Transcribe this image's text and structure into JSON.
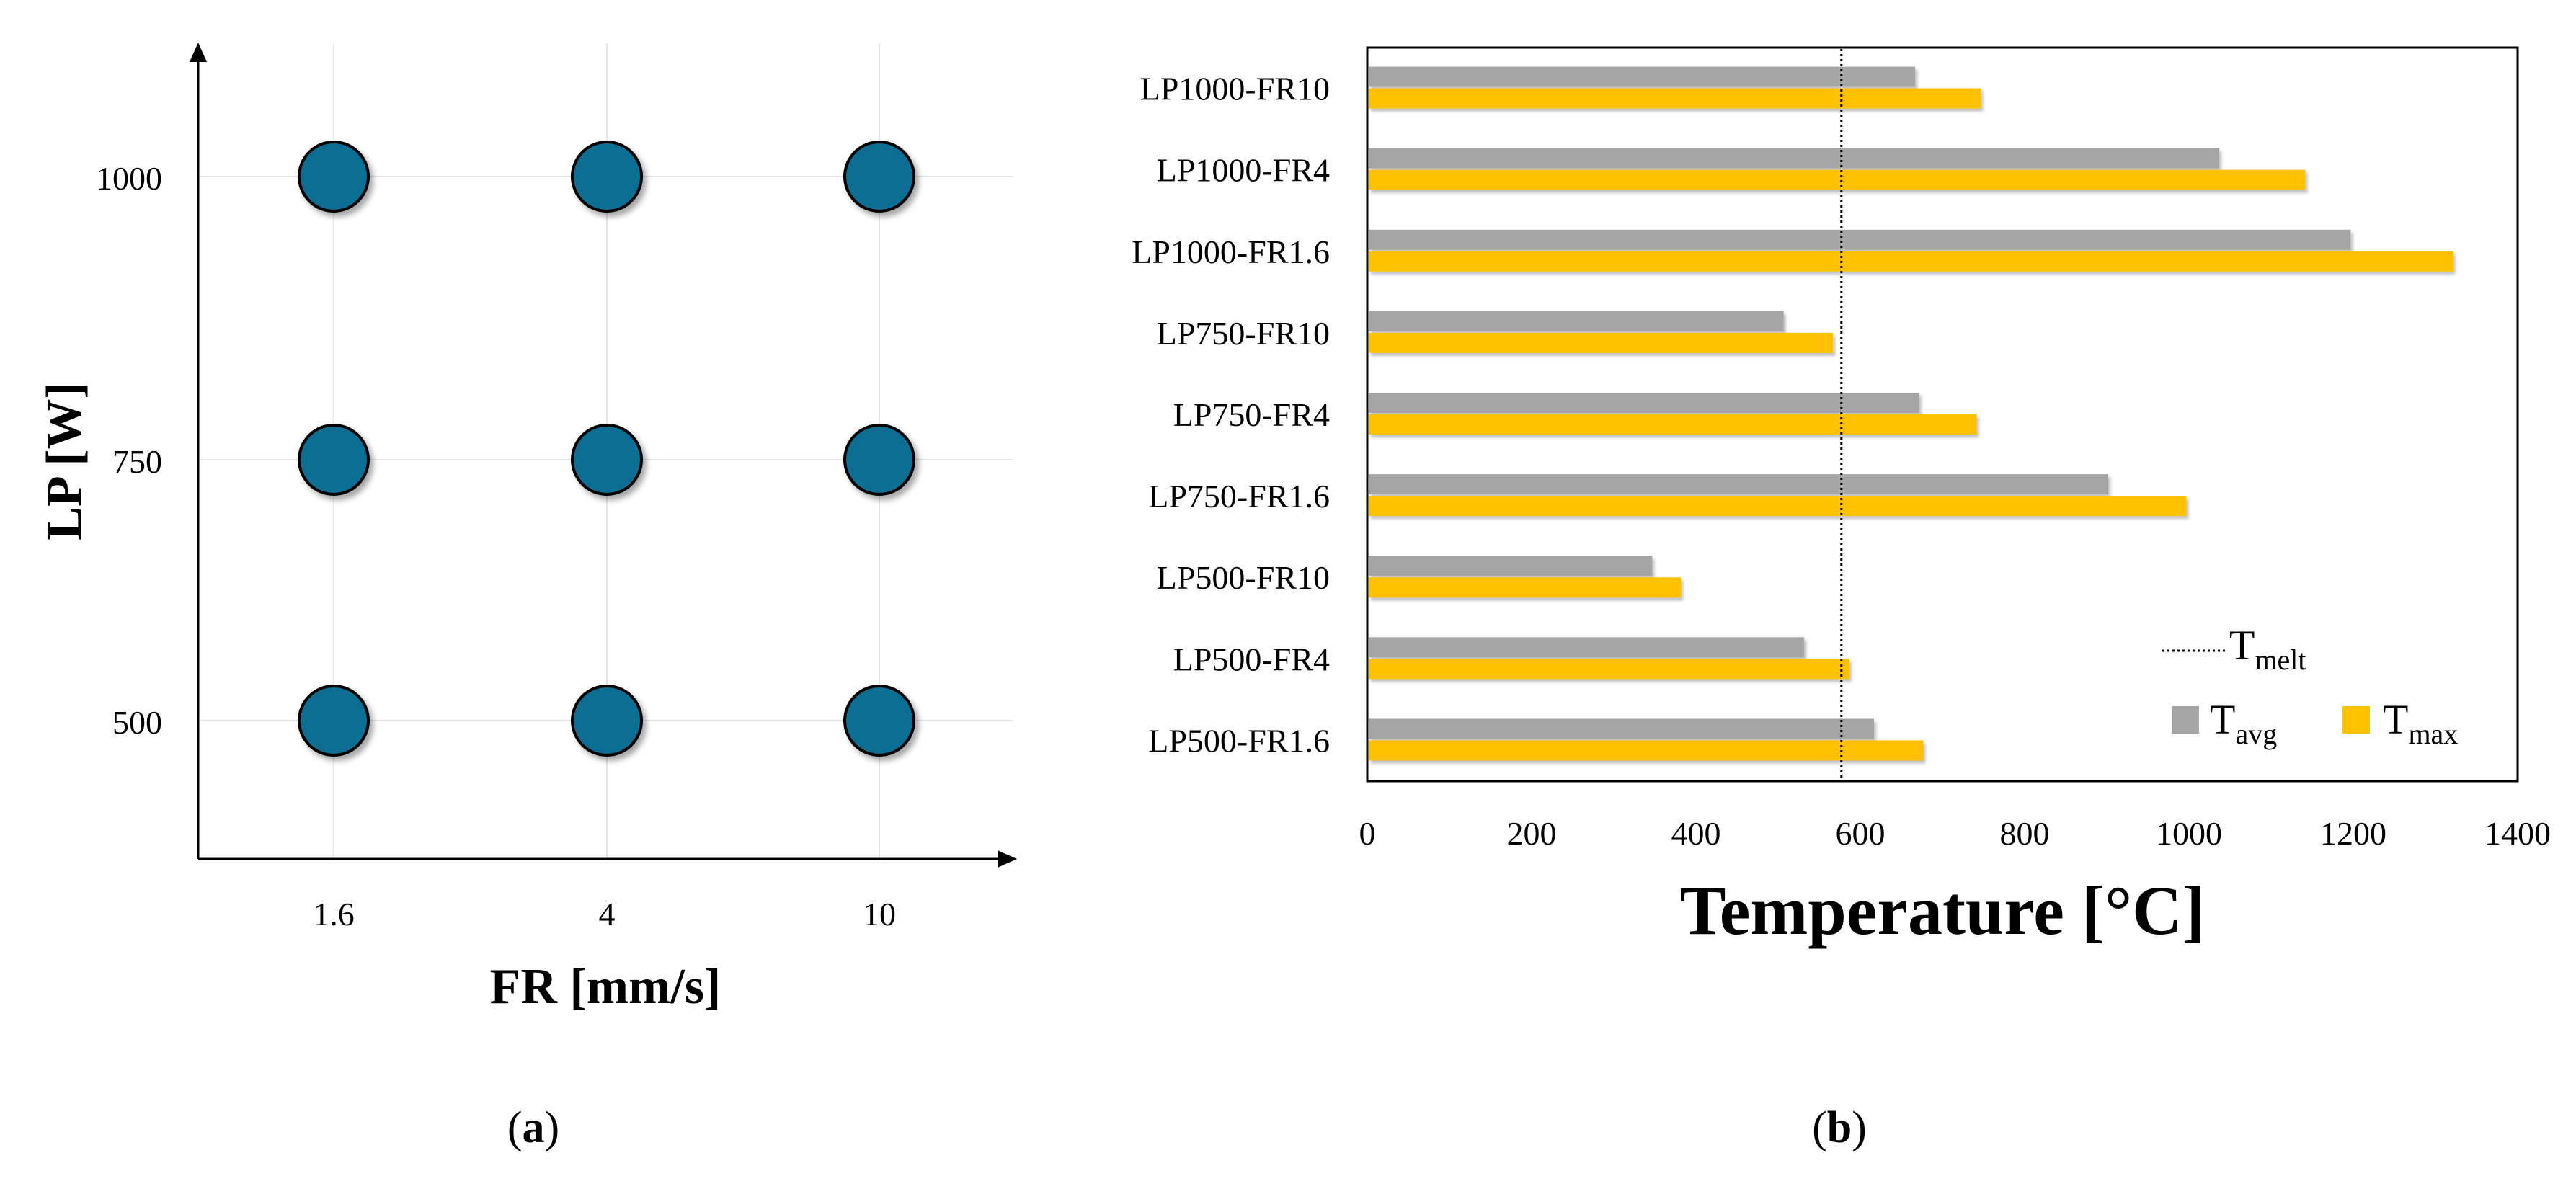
{
  "chart_data": [
    {
      "type": "scatter",
      "panel_label": "(a)",
      "xlabel": "FR [mm/s]",
      "ylabel": "LP [W]",
      "x_categories": [
        "1.6",
        "4",
        "10"
      ],
      "y_categories": [
        "500",
        "750",
        "1000"
      ],
      "points": [
        {
          "x": "1.6",
          "y": "500"
        },
        {
          "x": "4",
          "y": "500"
        },
        {
          "x": "10",
          "y": "500"
        },
        {
          "x": "1.6",
          "y": "750"
        },
        {
          "x": "4",
          "y": "750"
        },
        {
          "x": "10",
          "y": "750"
        },
        {
          "x": "1.6",
          "y": "1000"
        },
        {
          "x": "4",
          "y": "1000"
        },
        {
          "x": "10",
          "y": "1000"
        }
      ],
      "grid": true,
      "marker_color": "#0b6e94"
    },
    {
      "type": "bar",
      "orientation": "horizontal",
      "panel_label": "(b)",
      "xlabel": "Temperature [°C]",
      "ylabel": "",
      "xlim": [
        0,
        1400
      ],
      "xticks": [
        0,
        200,
        400,
        600,
        800,
        1000,
        1200,
        1400
      ],
      "categories": [
        "LP500-FR1.6",
        "LP500-FR4",
        "LP500-FR10",
        "LP750-FR1.6",
        "LP750-FR4",
        "LP750-FR10",
        "LP1000-FR1.6",
        "LP1000-FR4",
        "LP1000-FR10"
      ],
      "series": [
        {
          "name": "avg",
          "label_main": "T",
          "label_sub": "avg",
          "color": "#a5a5a5",
          "values": [
            615,
            530,
            345,
            900,
            670,
            505,
            1195,
            1035,
            665
          ]
        },
        {
          "name": "max",
          "label_main": "T",
          "label_sub": "max",
          "color": "#ffc000",
          "values": [
            675,
            585,
            380,
            995,
            740,
            565,
            1320,
            1140,
            745
          ]
        }
      ],
      "reference_line": {
        "name": "melt",
        "label_main": "T",
        "label_sub": "melt",
        "value": 577,
        "style": "dotted"
      },
      "legend_position": "bottom-right"
    }
  ]
}
